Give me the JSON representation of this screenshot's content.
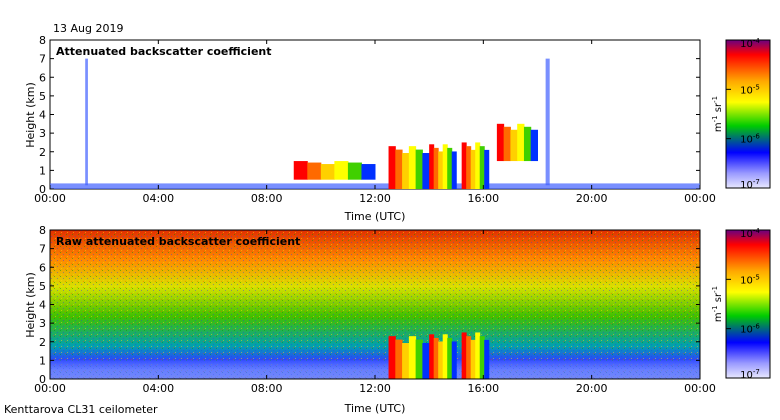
{
  "header": {
    "date": "13 Aug 2019"
  },
  "footer": {
    "instrument": "Kenttarova CL31 ceilometer"
  },
  "colorbar": {
    "ticks": [
      "10-4",
      "10-5",
      "10-6",
      "10-7"
    ],
    "tick_base": "10",
    "tick_exponents": [
      "-4",
      "-5",
      "-6",
      "-7"
    ],
    "unit_main": "m",
    "unit_exp1": "-1",
    "unit_sr": "sr",
    "unit_exp2": "-1",
    "colors": [
      "#6a0080",
      "#ff0000",
      "#ffaa00",
      "#ffff00",
      "#00cc00",
      "#0000ff",
      "#9999ff",
      "#dddddd"
    ]
  },
  "chart_data": [
    {
      "type": "heatmap",
      "title": "Attenuated backscatter coefficient",
      "xlabel": "Time (UTC)",
      "ylabel": "Height (km)",
      "xticks": [
        "00:00",
        "04:00",
        "08:00",
        "12:00",
        "16:00",
        "20:00",
        "00:00"
      ],
      "yticks": [
        "0",
        "1",
        "2",
        "3",
        "4",
        "5",
        "6",
        "7",
        "8"
      ],
      "xlim": [
        0,
        24
      ],
      "ylim": [
        0,
        8
      ],
      "colorscale_range": [
        "1e-7",
        "1e-4"
      ],
      "features": [
        {
          "name": "surface layer",
          "x": [
            0,
            24
          ],
          "y": [
            0,
            0.3
          ],
          "level": "low"
        },
        {
          "name": "thin column 01:20",
          "x": [
            1.3,
            1.4
          ],
          "y": [
            0.2,
            7
          ],
          "level": "low"
        },
        {
          "name": "thin column 18:25",
          "x": [
            18.3,
            18.45
          ],
          "y": [
            0.2,
            7
          ],
          "level": "low"
        },
        {
          "name": "cloud 09-12",
          "x": [
            9.0,
            12.0
          ],
          "y": [
            0.5,
            1.5
          ],
          "level": "high"
        },
        {
          "name": "cloud 12:30-14",
          "x": [
            12.5,
            14.0
          ],
          "y": [
            0.0,
            2.3
          ],
          "level": "high"
        },
        {
          "name": "cloud 14-15",
          "x": [
            14.0,
            15.0
          ],
          "y": [
            0.0,
            2.4
          ],
          "level": "high"
        },
        {
          "name": "cloud 15-16",
          "x": [
            15.2,
            16.2
          ],
          "y": [
            0.0,
            2.5
          ],
          "level": "high"
        },
        {
          "name": "cloud 16-18",
          "x": [
            16.5,
            18.0
          ],
          "y": [
            1.5,
            3.5
          ],
          "level": "high"
        }
      ]
    },
    {
      "type": "heatmap",
      "title": "Raw attenuated backscatter coefficient",
      "xlabel": "Time (UTC)",
      "ylabel": "Height (km)",
      "xticks": [
        "00:00",
        "04:00",
        "08:00",
        "12:00",
        "16:00",
        "20:00",
        "00:00"
      ],
      "yticks": [
        "0",
        "1",
        "2",
        "3",
        "4",
        "5",
        "6",
        "7",
        "8"
      ],
      "xlim": [
        0,
        24
      ],
      "ylim": [
        0,
        8
      ],
      "colorscale_range": [
        "1e-7",
        "1e-4"
      ],
      "features": [
        {
          "name": "noise gradient",
          "x": [
            0,
            24
          ],
          "y": [
            1,
            7.5
          ],
          "level": "increasing with height"
        },
        {
          "name": "clear-air low signal",
          "x": [
            0,
            24
          ],
          "y": [
            0,
            1
          ],
          "level": "low"
        },
        {
          "name": "cloud 12:30-14",
          "x": [
            12.5,
            14.0
          ],
          "y": [
            0.0,
            2.3
          ],
          "level": "high"
        },
        {
          "name": "cloud 14-15",
          "x": [
            14.0,
            15.0
          ],
          "y": [
            0.0,
            2.4
          ],
          "level": "high"
        },
        {
          "name": "cloud 15-16",
          "x": [
            15.2,
            16.2
          ],
          "y": [
            0.0,
            2.5
          ],
          "level": "high"
        }
      ]
    }
  ]
}
